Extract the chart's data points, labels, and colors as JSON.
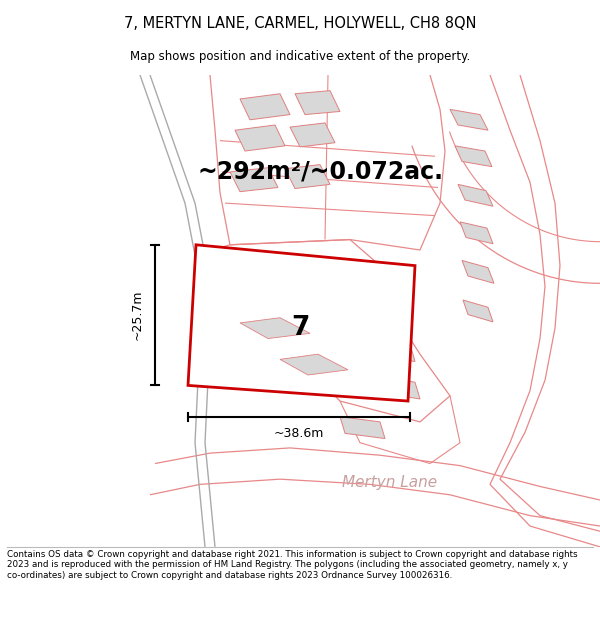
{
  "title_line1": "7, MERTYN LANE, CARMEL, HOLYWELL, CH8 8QN",
  "title_line2": "Map shows position and indicative extent of the property.",
  "area_label": "~292m²/~0.072ac.",
  "plot_number": "7",
  "dim_height": "~25.7m",
  "dim_width": "~38.6m",
  "road_label": "Mertyn Lane",
  "footer": "Contains OS data © Crown copyright and database right 2021. This information is subject to Crown copyright and database rights 2023 and is reproduced with the permission of HM Land Registry. The polygons (including the associated geometry, namely x, y co-ordinates) are subject to Crown copyright and database rights 2023 Ordnance Survey 100026316.",
  "bg_color": "#ffffff",
  "map_bg": "#ffffff",
  "pink_line": "#e88888",
  "pink_fill": "#f5d5d5",
  "building_fill": "#d8d8d8",
  "building_edge": "#e08080",
  "highlight_fill": "#ffffff",
  "highlight_edge": "#cc0000",
  "dim_color": "#000000",
  "text_color": "#000000",
  "road_text_color": "#c8a0a0",
  "grey_line": "#aaaaaa"
}
